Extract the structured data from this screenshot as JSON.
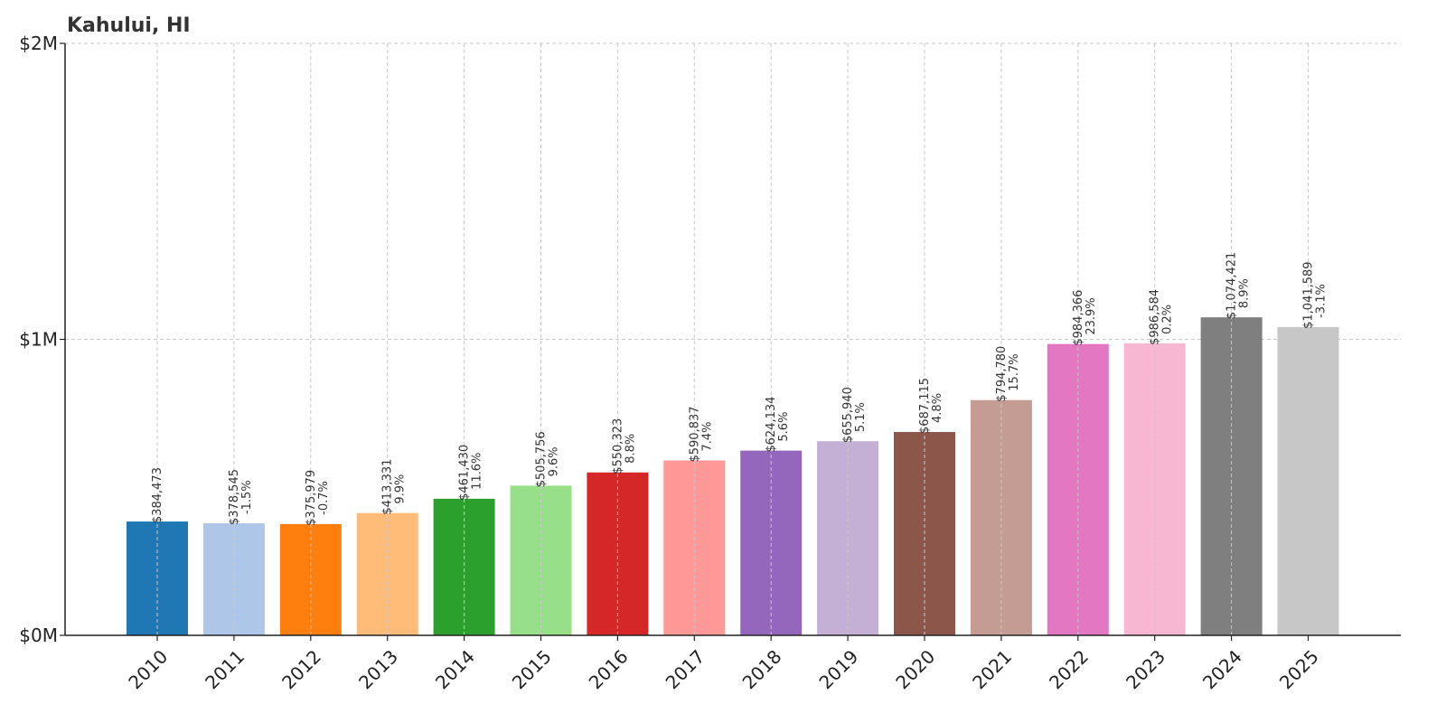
{
  "chart_data": {
    "type": "bar",
    "title": "Kahului, HI",
    "xlabel": "",
    "ylabel": "",
    "ylim": [
      0,
      2000000
    ],
    "yticks": [
      {
        "value": 0,
        "label": "$0M"
      },
      {
        "value": 1000000,
        "label": "$1M"
      },
      {
        "value": 2000000,
        "label": "$2M"
      }
    ],
    "grid": true,
    "legend": "none",
    "categories": [
      "2010",
      "2011",
      "2012",
      "2013",
      "2014",
      "2015",
      "2016",
      "2017",
      "2018",
      "2019",
      "2020",
      "2021",
      "2022",
      "2023",
      "2024",
      "2025"
    ],
    "values": [
      384473,
      378545,
      375979,
      413331,
      461430,
      505756,
      550323,
      590837,
      624134,
      655940,
      687115,
      794780,
      984366,
      986584,
      1074421,
      1041589
    ],
    "value_labels": [
      "$384,473",
      "$378,545",
      "$375,979",
      "$413,331",
      "$461,430",
      "$505,756",
      "$550,323",
      "$590,837",
      "$624,134",
      "$655,940",
      "$687,115",
      "$794,780",
      "$984,366",
      "$986,584",
      "$1,074,421",
      "$1,041,589"
    ],
    "change_labels": [
      "",
      "-1.5%",
      "-0.7%",
      "9.9%",
      "11.6%",
      "9.6%",
      "8.8%",
      "7.4%",
      "5.6%",
      "5.1%",
      "4.8%",
      "15.7%",
      "23.9%",
      "0.2%",
      "8.9%",
      "-3.1%"
    ],
    "colors": [
      "#1f77b4",
      "#aec7e8",
      "#ff7f0e",
      "#ffbb78",
      "#2ca02c",
      "#98df8a",
      "#d62728",
      "#ff9896",
      "#9467bd",
      "#c5b0d5",
      "#8c564b",
      "#c49c94",
      "#e377c2",
      "#f7b6d2",
      "#7f7f7f",
      "#c7c7c7"
    ]
  }
}
